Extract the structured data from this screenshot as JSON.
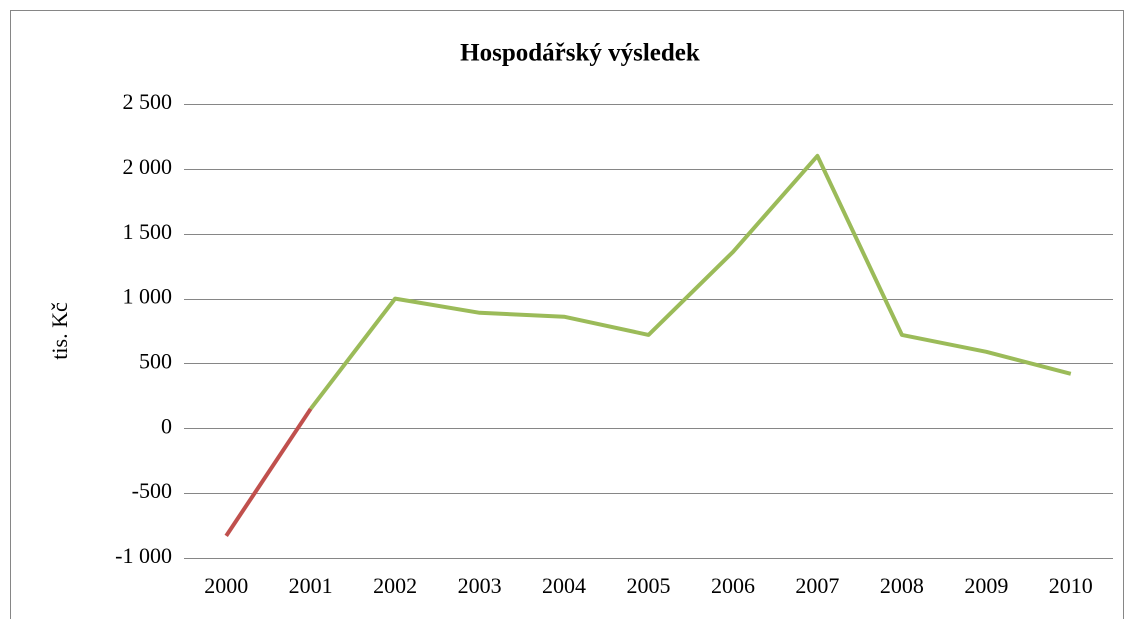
{
  "chart_data": {
    "type": "line",
    "title": "Hospodářský výsledek",
    "y_label": "tis. Kč",
    "categories": [
      "2000",
      "2001",
      "2002",
      "2003",
      "2004",
      "2005",
      "2006",
      "2007",
      "2008",
      "2009",
      "2010"
    ],
    "series": [
      {
        "color": "#c0504d",
        "values": [
          -830,
          150,
          null,
          null,
          null,
          null,
          null,
          null,
          null,
          null,
          null
        ]
      },
      {
        "color": "#9bbb59",
        "values": [
          null,
          150,
          1000,
          890,
          860,
          720,
          1360,
          2100,
          720,
          590,
          420
        ]
      }
    ],
    "ylim": [
      -1000,
      2500
    ],
    "yticks": [
      {
        "value": -1000,
        "label": "-1 000"
      },
      -500,
      0,
      500,
      {
        "value": 1000,
        "label": "1 000"
      },
      {
        "value": 1500,
        "label": "1 500"
      },
      {
        "value": 2000,
        "label": "2 000"
      },
      {
        "value": 2500,
        "label": "2 500"
      }
    ],
    "grid": true
  }
}
